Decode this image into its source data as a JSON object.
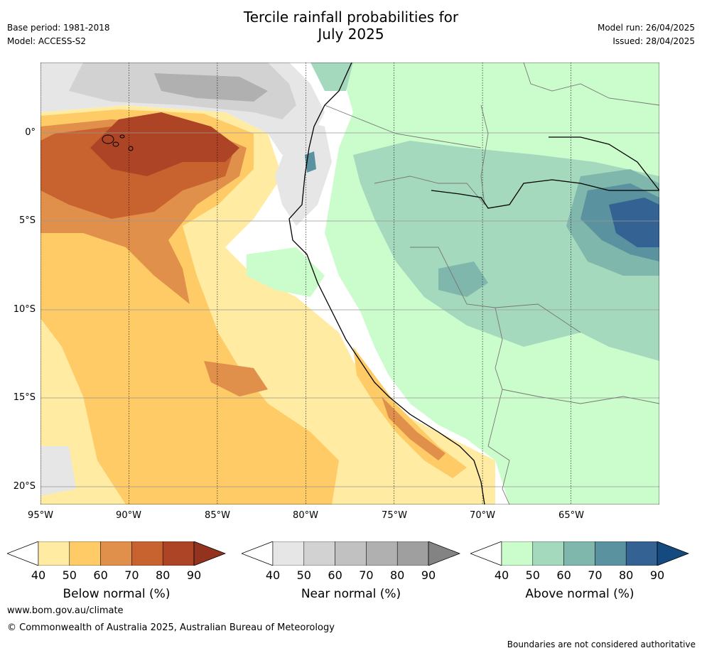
{
  "title_line1": "Tercile rainfall probabilities for",
  "title_line2": "July 2025",
  "meta": {
    "base_period": "Base period: 1981-2018",
    "model": "Model: ACCESS-S2",
    "model_run": "Model run: 26/04/2025",
    "issued": "Issued: 28/04/2025"
  },
  "map": {
    "lat_labels": [
      "0°",
      "5°S",
      "10°S",
      "15°S",
      "20°S"
    ],
    "lon_labels": [
      "95°W",
      "90°W",
      "85°W",
      "80°W",
      "75°W",
      "70°W",
      "65°W"
    ]
  },
  "colorbars": [
    {
      "title": "Below normal (%)",
      "ticks": [
        "40",
        "50",
        "60",
        "70",
        "80",
        "90"
      ],
      "colors": [
        "#ffeba1",
        "#fecb66",
        "#e0904a",
        "#c8622f",
        "#ad4426",
        "#93321f"
      ]
    },
    {
      "title": "Near normal (%)",
      "ticks": [
        "40",
        "50",
        "60",
        "70",
        "80",
        "90"
      ],
      "colors": [
        "#e6e6e6",
        "#d2d2d2",
        "#c1c1c1",
        "#b0b0b0",
        "#9f9f9f",
        "#838383"
      ]
    },
    {
      "title": "Above normal (%)",
      "ticks": [
        "40",
        "50",
        "60",
        "70",
        "80",
        "90"
      ],
      "colors": [
        "#cbfccb",
        "#a4d9bd",
        "#7fb7ac",
        "#5b92a0",
        "#346393",
        "#154a80"
      ]
    }
  ],
  "footer": {
    "website": "www.bom.gov.au/climate",
    "copyright": "© Commonwealth of Australia 2025, Australian Bureau of Meteorology",
    "disclaimer": "Boundaries are not considered authoritative"
  }
}
